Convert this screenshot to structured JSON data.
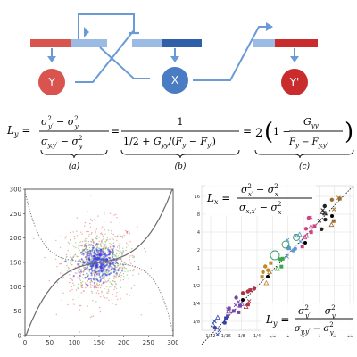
{
  "diagram": {
    "nodes": [
      {
        "id": "Y",
        "label": "Y",
        "color": "#d9534f"
      },
      {
        "id": "X",
        "label": "X",
        "color": "#4a7cc4"
      },
      {
        "id": "Yp",
        "label": "Y'",
        "color": "#c92c2c"
      }
    ],
    "colors": {
      "red": "#d9534f",
      "blue": "#8ab0de",
      "arrow": "#6a9bd6"
    }
  },
  "equation": {
    "lhs": "L",
    "lhs_sub": "y",
    "a_num": "σ²_{y'} − σ²_y",
    "a_den": "σ_{y,y'} − σ²_y",
    "b_num": "1",
    "b_den": "1/2 + G_{yy}/(F_y − F_{y'})",
    "c_coeff": "2",
    "c_frac_num": "G_{yy}",
    "c_frac_den": "F_y − F_{y,y'}",
    "labels": {
      "a": "(a)",
      "b": "(b)",
      "c": "(c)"
    }
  },
  "chart_data": [
    {
      "type": "scatter",
      "title": "",
      "xlabel": "",
      "ylabel": "",
      "xlim": [
        0,
        300
      ],
      "ylim": [
        0,
        300
      ],
      "x_ticks": [
        "0",
        "50",
        "100",
        "150",
        "200",
        "250",
        "300"
      ],
      "y_ticks": [
        "0",
        "50",
        "100",
        "150",
        "200",
        "250",
        "300"
      ],
      "grid": false,
      "series": [
        {
          "color": "#e05050",
          "center": [
            150,
            150
          ],
          "spread": [
            38,
            42
          ]
        },
        {
          "color": "#3bbf3b",
          "center": [
            150,
            150
          ],
          "spread": [
            30,
            28
          ]
        },
        {
          "color": "#3b3be0",
          "center": [
            150,
            150
          ],
          "spread": [
            18,
            16
          ]
        }
      ],
      "curves": [
        {
          "color": "#555555",
          "style": "solid",
          "shape": "sigmoid-increasing"
        },
        {
          "color": "#777777",
          "style": "dotted",
          "shape": "sigmoid-decreasing"
        }
      ]
    },
    {
      "type": "scatter",
      "title": "",
      "xlabel": "",
      "ylabel": "",
      "scale": "log2",
      "x_ticks": [
        "1/32",
        "1/16",
        "1/8",
        "1/4",
        "1/2",
        "1",
        "2",
        "4",
        "8",
        "16"
      ],
      "y_ticks": [
        "1/8",
        "1/4",
        "1/2",
        "1",
        "2",
        "4",
        "8",
        "16"
      ],
      "grid": true,
      "diagonal": true,
      "eq_top": {
        "lhs": "L",
        "lhs_sub": "x",
        "num": "σ²_{x'} − σ²_x",
        "den": "σ_{x,x'} − σ²_x"
      },
      "eq_bottom": {
        "lhs": "L",
        "lhs_sub": "y",
        "num": "σ²_{y'} − σ²_y",
        "den": "σ_{y,y'} − σ²_y"
      }
    }
  ]
}
